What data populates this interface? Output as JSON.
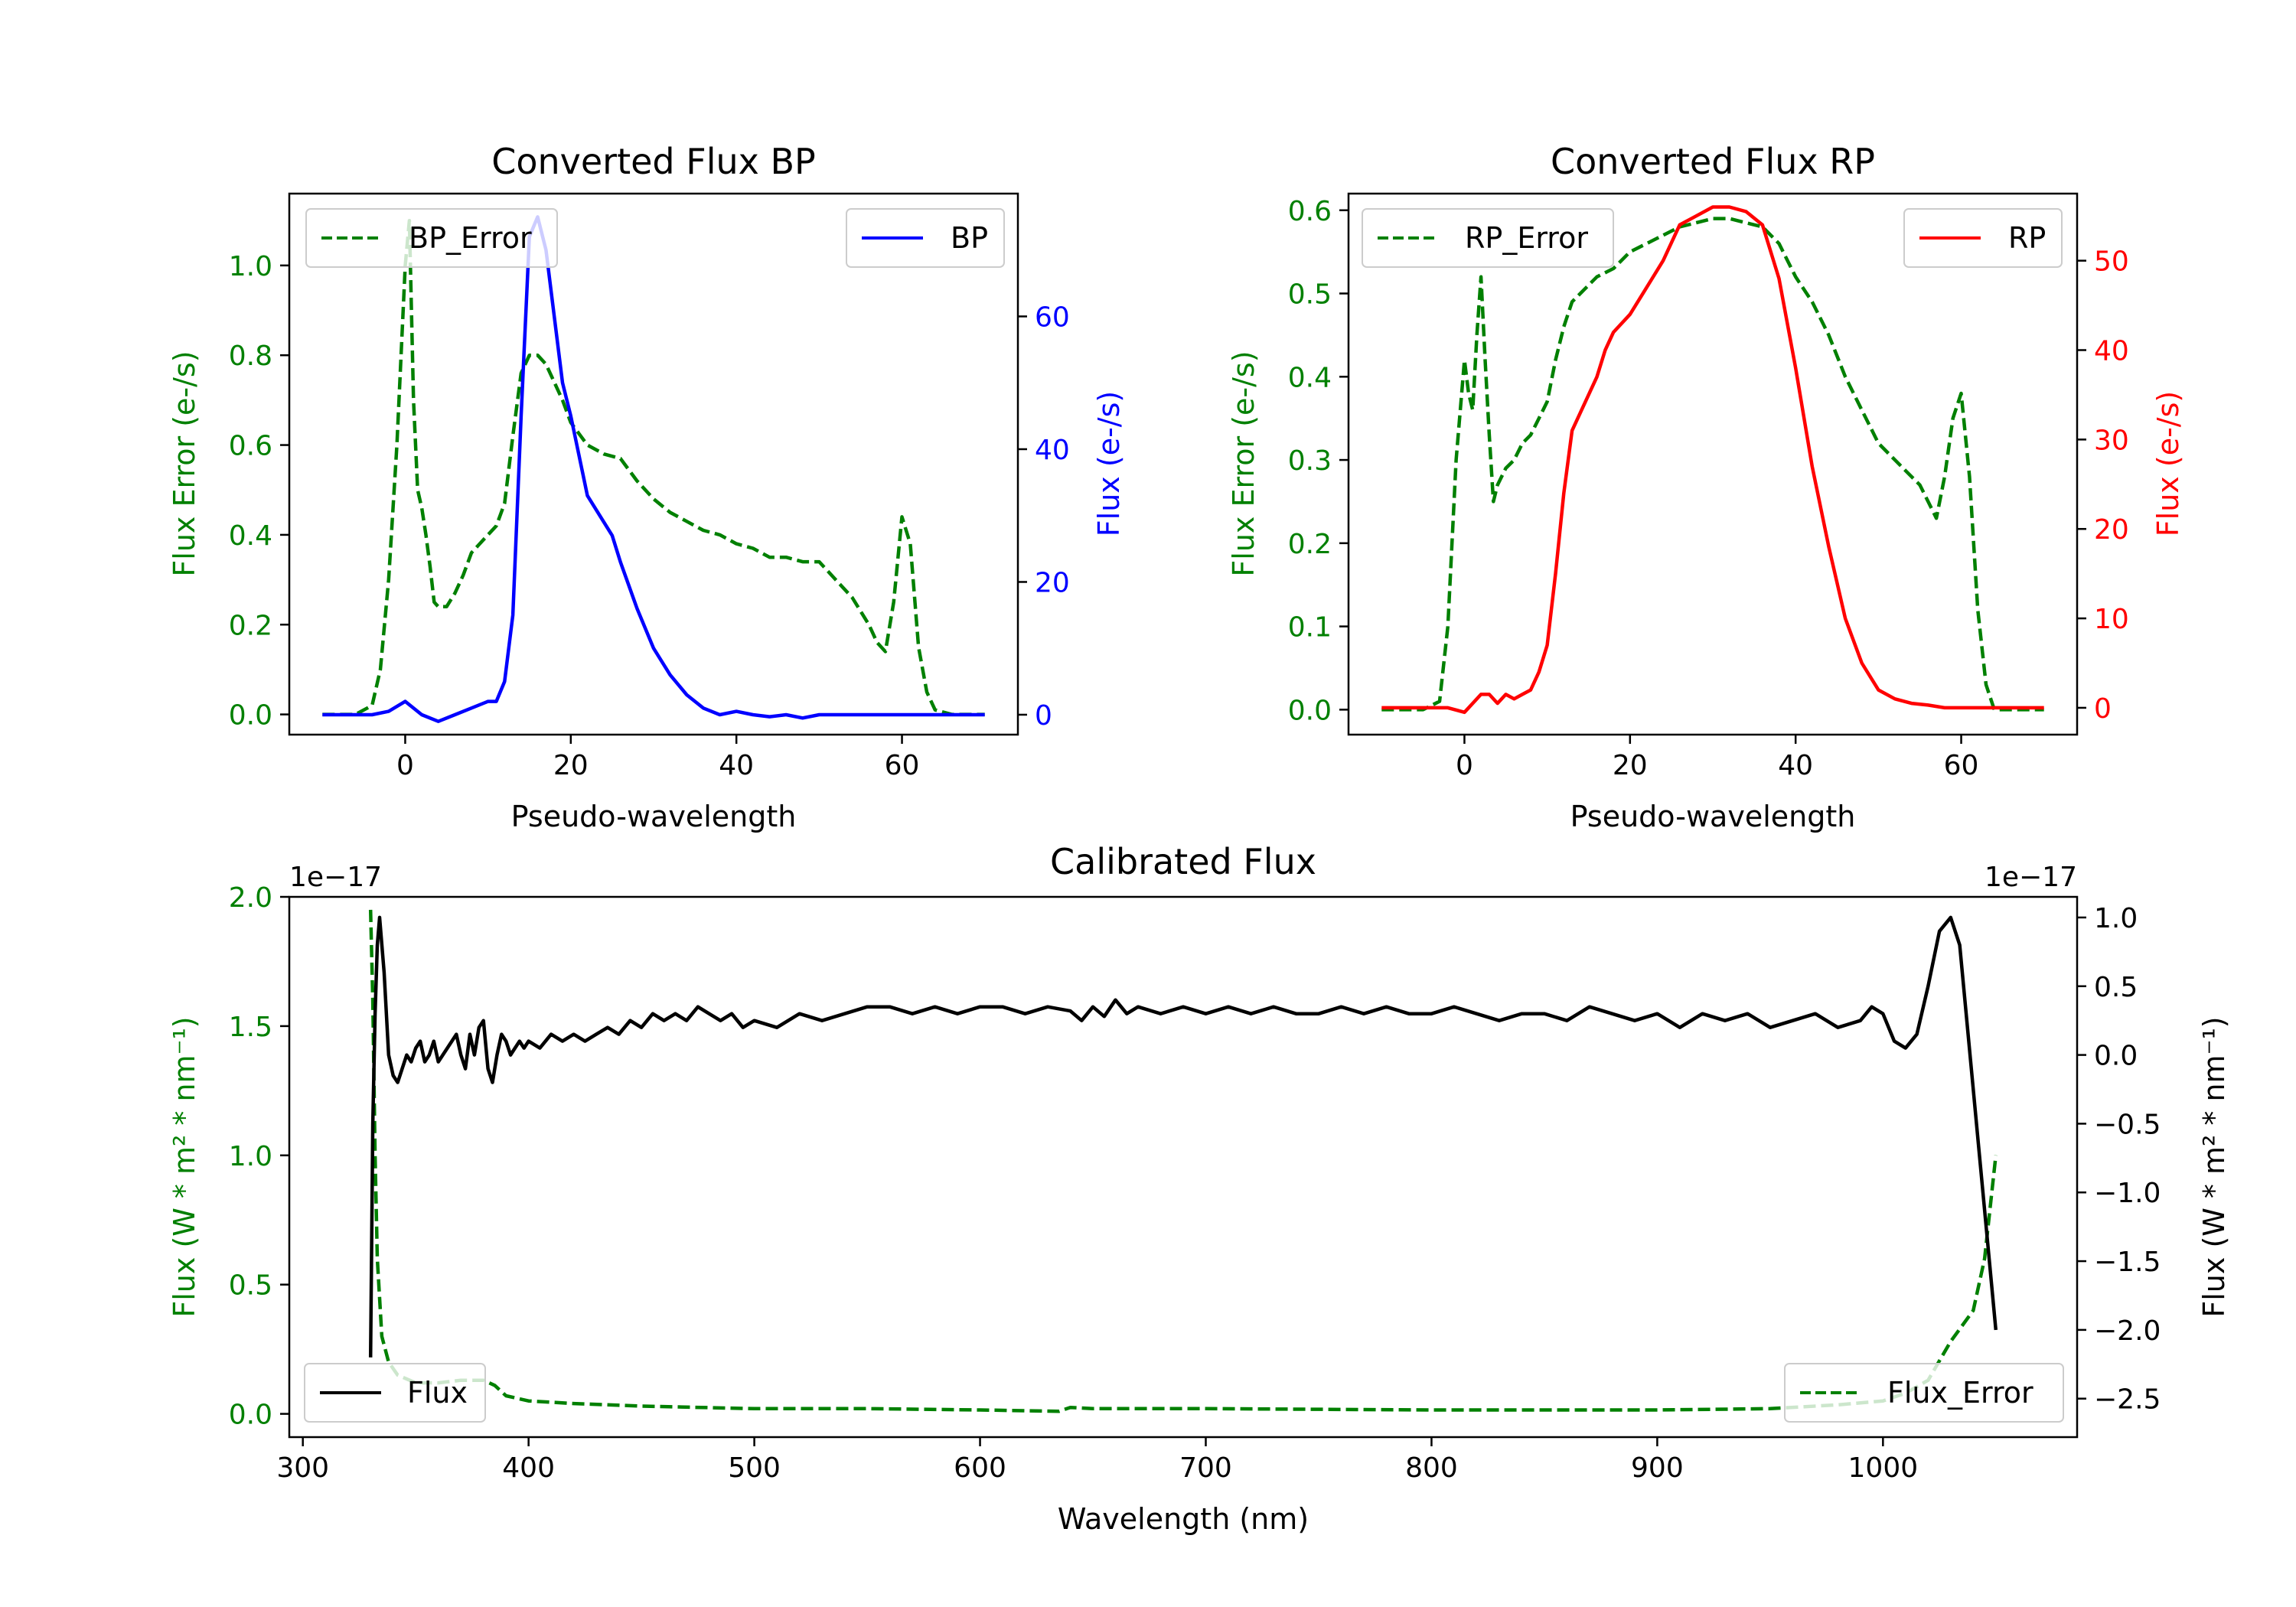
{
  "chart_data": [
    {
      "type": "line",
      "id": "bp",
      "title": "Converted Flux BP",
      "xlabel": "Pseudo-wavelength",
      "ylabel_left": "Flux Error (e-/s)",
      "ylabel_right": "Flux (e-/s)",
      "xlim": [
        -14,
        74
      ],
      "ylim_left": [
        -0.045,
        1.16
      ],
      "ylim_right": [
        -3.0,
        78.5
      ],
      "xticks": [
        0,
        20,
        40,
        60
      ],
      "yticks_left": [
        0.0,
        0.2,
        0.4,
        0.6,
        0.8,
        1.0
      ],
      "yticks_right": [
        0,
        20,
        40,
        60
      ],
      "legend_left_label": "BP_Error",
      "legend_right_label": "BP",
      "series": [
        {
          "name": "BP_Error",
          "axis": "left",
          "color": "#008000",
          "dash": true,
          "x": [
            -10,
            -6,
            -4,
            -3,
            -2,
            -1,
            0,
            0.5,
            1,
            1.5,
            2,
            2.5,
            3,
            3.5,
            4,
            4.5,
            5,
            6,
            7,
            8,
            9,
            10,
            11,
            12,
            13,
            14,
            15,
            16,
            17,
            18,
            19,
            20,
            22,
            24,
            26,
            28,
            30,
            32,
            34,
            36,
            38,
            40,
            42,
            44,
            46,
            48,
            50,
            52,
            54,
            56,
            57,
            58,
            59,
            60,
            61,
            62,
            63,
            64,
            66,
            70
          ],
          "values": [
            0,
            0,
            0.02,
            0.1,
            0.3,
            0.6,
            1.0,
            1.1,
            0.7,
            0.5,
            0.46,
            0.4,
            0.33,
            0.25,
            0.24,
            0.24,
            0.24,
            0.27,
            0.31,
            0.36,
            0.38,
            0.4,
            0.42,
            0.47,
            0.62,
            0.76,
            0.8,
            0.8,
            0.78,
            0.74,
            0.7,
            0.65,
            0.6,
            0.58,
            0.57,
            0.52,
            0.48,
            0.45,
            0.43,
            0.41,
            0.4,
            0.38,
            0.37,
            0.35,
            0.35,
            0.34,
            0.34,
            0.3,
            0.26,
            0.2,
            0.16,
            0.14,
            0.25,
            0.44,
            0.38,
            0.15,
            0.05,
            0.01,
            0,
            0
          ]
        },
        {
          "name": "BP",
          "axis": "right",
          "color": "#0000ff",
          "dash": false,
          "x": [
            -10,
            -4,
            -2,
            0,
            2,
            4,
            6,
            8,
            10,
            11,
            12,
            13,
            14,
            15,
            16,
            17,
            18,
            19,
            20,
            22,
            24,
            25,
            26,
            28,
            30,
            32,
            34,
            36,
            38,
            40,
            42,
            44,
            46,
            48,
            50,
            55,
            60,
            65,
            70
          ],
          "values": [
            0,
            0,
            0.5,
            2,
            0,
            -1,
            0,
            1,
            2,
            2,
            5,
            15,
            45,
            72,
            75,
            70,
            60,
            50,
            45,
            33,
            29,
            27,
            23,
            16,
            10,
            6,
            3,
            1,
            0,
            0.5,
            0,
            -0.3,
            0,
            -0.5,
            0,
            0,
            0,
            0,
            0
          ]
        }
      ]
    },
    {
      "type": "line",
      "id": "rp",
      "title": "Converted Flux RP",
      "xlabel": "Pseudo-wavelength",
      "ylabel_left": "Flux Error (e-/s)",
      "ylabel_right": "Flux (e-/s)",
      "xlim": [
        -14,
        74
      ],
      "ylim_left": [
        -0.03,
        0.62
      ],
      "ylim_right": [
        -3.0,
        57.5
      ],
      "xticks": [
        0,
        20,
        40,
        60
      ],
      "yticks_left": [
        0.0,
        0.1,
        0.2,
        0.3,
        0.4,
        0.5,
        0.6
      ],
      "yticks_right": [
        0,
        10,
        20,
        30,
        40,
        50
      ],
      "legend_left_label": "RP_Error",
      "legend_right_label": "RP",
      "series": [
        {
          "name": "RP_Error",
          "axis": "left",
          "color": "#008000",
          "dash": true,
          "x": [
            -10,
            -5,
            -3,
            -2,
            -1,
            0,
            0.5,
            1,
            1.5,
            2,
            2.5,
            3,
            3.5,
            4,
            4.5,
            5,
            6,
            7,
            8,
            9,
            10,
            11,
            12,
            13,
            14,
            15,
            16,
            18,
            20,
            22,
            24,
            26,
            28,
            30,
            32,
            34,
            36,
            38,
            40,
            42,
            44,
            46,
            48,
            50,
            52,
            54,
            55,
            56,
            57,
            58,
            59,
            60,
            61,
            62,
            63,
            64,
            66,
            70
          ],
          "values": [
            0,
            0,
            0.01,
            0.1,
            0.3,
            0.42,
            0.38,
            0.36,
            0.45,
            0.52,
            0.42,
            0.33,
            0.25,
            0.27,
            0.28,
            0.29,
            0.3,
            0.32,
            0.33,
            0.35,
            0.37,
            0.42,
            0.46,
            0.49,
            0.5,
            0.51,
            0.52,
            0.53,
            0.55,
            0.56,
            0.57,
            0.58,
            0.585,
            0.59,
            0.59,
            0.585,
            0.58,
            0.56,
            0.52,
            0.49,
            0.45,
            0.4,
            0.36,
            0.32,
            0.3,
            0.28,
            0.27,
            0.25,
            0.23,
            0.28,
            0.35,
            0.38,
            0.28,
            0.12,
            0.03,
            0,
            0,
            0
          ]
        },
        {
          "name": "RP",
          "axis": "right",
          "color": "#ff0000",
          "dash": false,
          "x": [
            -10,
            -4,
            -2,
            0,
            2,
            3,
            4,
            5,
            6,
            7,
            8,
            9,
            10,
            11,
            12,
            13,
            14,
            15,
            16,
            17,
            18,
            20,
            22,
            24,
            26,
            28,
            30,
            32,
            34,
            36,
            38,
            40,
            42,
            44,
            46,
            48,
            50,
            52,
            54,
            56,
            58,
            60,
            65,
            70
          ],
          "values": [
            0,
            0,
            0,
            -0.5,
            1.5,
            1.5,
            0.5,
            1.5,
            1.0,
            1.5,
            2.0,
            4.0,
            7.0,
            15,
            24,
            31,
            33,
            35,
            37,
            40,
            42,
            44,
            47,
            50,
            54,
            55,
            56,
            56,
            55.5,
            54,
            48,
            38,
            27,
            18,
            10,
            5,
            2,
            1,
            0.5,
            0.3,
            0,
            0,
            0,
            0
          ]
        }
      ]
    },
    {
      "type": "line",
      "id": "calibrated",
      "title": "Calibrated Flux",
      "xlabel": "Wavelength (nm)",
      "ylabel_left": "Flux (W * m² * nm⁻¹)",
      "ylabel_right": "Flux (W * m² * nm⁻¹)",
      "offset_left": "1e−17",
      "offset_right": "1e−17",
      "xlim": [
        294,
        1086
      ],
      "ylim_left": [
        -0.09,
        2.0
      ],
      "ylim_right": [
        -2.78,
        1.15
      ],
      "xticks": [
        300,
        400,
        500,
        600,
        700,
        800,
        900,
        1000
      ],
      "yticks_left": [
        0.0,
        0.5,
        1.0,
        1.5,
        2.0
      ],
      "yticks_left_labels": [
        "0.0",
        "0.5",
        "1.0",
        "1.5",
        "2.0"
      ],
      "yticks_right": [
        -2.5,
        -2.0,
        -1.5,
        -1.0,
        -0.5,
        0.0,
        0.5,
        1.0
      ],
      "yticks_right_labels": [
        "−2.5",
        "−2.0",
        "−1.5",
        "−1.0",
        "−0.5",
        "0.0",
        "0.5",
        "1.0"
      ],
      "legend_left_label": "Flux",
      "legend_right_label": "Flux_Error",
      "series": [
        {
          "name": "Flux_Error",
          "axis": "left",
          "color": "#008000",
          "dash": true,
          "x": [
            330,
            331,
            332,
            333,
            335,
            338,
            342,
            350,
            360,
            370,
            380,
            385,
            390,
            400,
            420,
            450,
            500,
            550,
            600,
            635,
            640,
            650,
            700,
            800,
            900,
            950,
            980,
            1000,
            1010,
            1020,
            1030,
            1040,
            1045,
            1050
          ],
          "values": [
            1.95,
            1.6,
            1.0,
            0.6,
            0.3,
            0.2,
            0.15,
            0.12,
            0.12,
            0.13,
            0.13,
            0.11,
            0.07,
            0.05,
            0.04,
            0.03,
            0.02,
            0.02,
            0.015,
            0.01,
            0.025,
            0.02,
            0.02,
            0.015,
            0.015,
            0.02,
            0.035,
            0.05,
            0.08,
            0.13,
            0.28,
            0.4,
            0.6,
            1.0
          ]
        },
        {
          "name": "Flux",
          "axis": "right",
          "color": "#000000",
          "dash": false,
          "x": [
            330,
            331,
            332,
            333,
            334,
            336,
            338,
            340,
            342,
            344,
            346,
            348,
            350,
            352,
            354,
            356,
            358,
            360,
            362,
            364,
            366,
            368,
            370,
            372,
            374,
            376,
            378,
            380,
            382,
            384,
            386,
            388,
            390,
            392,
            394,
            396,
            398,
            400,
            405,
            410,
            415,
            420,
            425,
            430,
            435,
            440,
            445,
            450,
            455,
            460,
            465,
            470,
            475,
            480,
            485,
            490,
            495,
            500,
            510,
            520,
            530,
            540,
            550,
            560,
            570,
            580,
            590,
            600,
            610,
            620,
            630,
            640,
            645,
            650,
            655,
            660,
            665,
            670,
            680,
            690,
            700,
            710,
            720,
            730,
            740,
            750,
            760,
            770,
            780,
            790,
            800,
            810,
            820,
            830,
            840,
            850,
            860,
            870,
            880,
            890,
            900,
            910,
            920,
            930,
            940,
            950,
            960,
            970,
            980,
            990,
            995,
            1000,
            1005,
            1010,
            1015,
            1020,
            1025,
            1030,
            1034,
            1038,
            1042,
            1046,
            1050
          ],
          "values": [
            -2.2,
            -0.5,
            0.3,
            0.8,
            1.0,
            0.6,
            0.0,
            -0.15,
            -0.2,
            -0.1,
            0.0,
            -0.05,
            0.05,
            0.1,
            -0.05,
            0.0,
            0.1,
            -0.05,
            0.0,
            0.05,
            0.1,
            0.15,
            0.0,
            -0.1,
            0.15,
            0.0,
            0.2,
            0.25,
            -0.1,
            -0.2,
            0.0,
            0.15,
            0.1,
            0.0,
            0.05,
            0.1,
            0.05,
            0.1,
            0.05,
            0.15,
            0.1,
            0.15,
            0.1,
            0.15,
            0.2,
            0.15,
            0.25,
            0.2,
            0.3,
            0.25,
            0.3,
            0.25,
            0.35,
            0.3,
            0.25,
            0.3,
            0.2,
            0.25,
            0.2,
            0.3,
            0.25,
            0.3,
            0.35,
            0.35,
            0.3,
            0.35,
            0.3,
            0.35,
            0.35,
            0.3,
            0.35,
            0.32,
            0.25,
            0.35,
            0.28,
            0.4,
            0.3,
            0.35,
            0.3,
            0.35,
            0.3,
            0.35,
            0.3,
            0.35,
            0.3,
            0.3,
            0.35,
            0.3,
            0.35,
            0.3,
            0.3,
            0.35,
            0.3,
            0.25,
            0.3,
            0.3,
            0.25,
            0.35,
            0.3,
            0.25,
            0.3,
            0.2,
            0.3,
            0.25,
            0.3,
            0.2,
            0.25,
            0.3,
            0.2,
            0.25,
            0.35,
            0.3,
            0.1,
            0.05,
            0.15,
            0.5,
            0.9,
            1.0,
            0.8,
            0.1,
            -0.6,
            -1.3,
            -2.0
          ]
        }
      ]
    }
  ]
}
